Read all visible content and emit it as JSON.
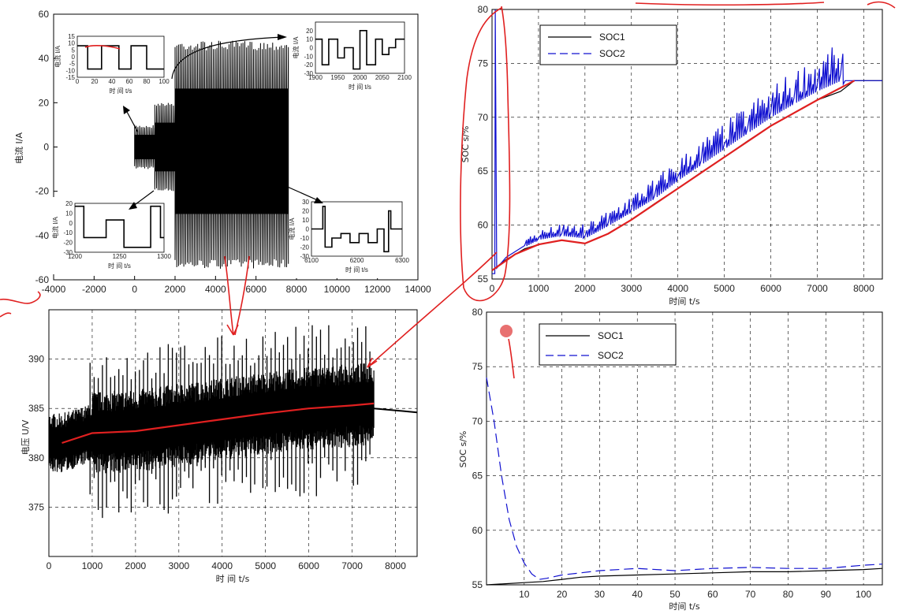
{
  "colors": {
    "background": "#ffffff",
    "soc1": "#000000",
    "soc2": "#1010d0",
    "annotation": "#e02020",
    "grid": "#000000"
  },
  "chart_data": [
    {
      "id": "current",
      "type": "line",
      "xlim": [
        -4000,
        14000
      ],
      "ylim": [
        -60,
        60
      ],
      "xticks": [
        "-4000",
        "-2000",
        "0",
        "2000",
        "4000",
        "6000",
        "8000",
        "10000",
        "12000",
        "14000"
      ],
      "yticks": [
        "60",
        "40",
        "20",
        "0",
        "-20",
        "-40",
        "-60"
      ],
      "ylabel": "电流 I/A",
      "xlabel": "",
      "envelope": [
        {
          "x0": 0,
          "x1": 1000,
          "ymin": -10,
          "ymax": 10
        },
        {
          "x0": 1000,
          "x1": 2000,
          "ymin": -20,
          "ymax": 20
        },
        {
          "x0": 2000,
          "x1": 7600,
          "ymin": -55,
          "ymax": 48
        }
      ],
      "insets": [
        {
          "id": "inset-a",
          "xlim": [
            0,
            100
          ],
          "ylim": [
            -15,
            15
          ],
          "xticks": [
            "0",
            "20",
            "40",
            "60",
            "80",
            "100"
          ],
          "yticks": [
            "15",
            "10",
            "5",
            "0",
            "-5",
            "-10",
            "-15"
          ],
          "xlabel": "时 间 t/s",
          "ylabel": "电流 I/A",
          "steps": [
            [
              0,
              8
            ],
            [
              12,
              8
            ],
            [
              12,
              -9
            ],
            [
              28,
              -9
            ],
            [
              28,
              8
            ],
            [
              48,
              8
            ],
            [
              48,
              -9
            ],
            [
              62,
              -9
            ],
            [
              62,
              8
            ],
            [
              80,
              8
            ],
            [
              80,
              -9
            ],
            [
              100,
              -9
            ]
          ]
        },
        {
          "id": "inset-b",
          "xlim": [
            1900,
            2100
          ],
          "ylim": [
            -30,
            30
          ],
          "xticks": [
            "1900",
            "1950",
            "2000",
            "2050",
            "2100"
          ],
          "yticks": [
            "20",
            "10",
            "0",
            "-10",
            "-20",
            "-30"
          ],
          "xlabel": "时 间 t/s",
          "ylabel": "电流 I/A",
          "steps": [
            [
              1900,
              10
            ],
            [
              1915,
              10
            ],
            [
              1915,
              -20
            ],
            [
              1930,
              -20
            ],
            [
              1930,
              10
            ],
            [
              1950,
              10
            ],
            [
              1950,
              -12
            ],
            [
              1965,
              -12
            ],
            [
              1965,
              0
            ],
            [
              1985,
              0
            ],
            [
              1985,
              -25
            ],
            [
              2000,
              -25
            ],
            [
              2000,
              20
            ],
            [
              2015,
              20
            ],
            [
              2015,
              -20
            ],
            [
              2035,
              -20
            ],
            [
              2035,
              10
            ],
            [
              2050,
              10
            ],
            [
              2050,
              -8
            ],
            [
              2065,
              -8
            ],
            [
              2065,
              0
            ],
            [
              2080,
              0
            ],
            [
              2080,
              10
            ],
            [
              2100,
              10
            ]
          ]
        },
        {
          "id": "inset-c",
          "xlim": [
            1200,
            1300
          ],
          "ylim": [
            -30,
            20
          ],
          "xticks": [
            "1200",
            "1250",
            "1300"
          ],
          "yticks": [
            "20",
            "10",
            "0",
            "-10",
            "-20",
            "-30"
          ],
          "xlabel": "时 间 t/s",
          "ylabel": "电流 I/A",
          "steps": [
            [
              1200,
              17
            ],
            [
              1210,
              17
            ],
            [
              1210,
              -15
            ],
            [
              1235,
              -15
            ],
            [
              1235,
              3
            ],
            [
              1255,
              3
            ],
            [
              1255,
              -25
            ],
            [
              1285,
              -25
            ],
            [
              1285,
              17
            ],
            [
              1296,
              17
            ],
            [
              1296,
              -15
            ],
            [
              1300,
              -15
            ]
          ]
        },
        {
          "id": "inset-d",
          "xlim": [
            6100,
            6300
          ],
          "ylim": [
            -30,
            30
          ],
          "xticks": [
            "6100",
            "6200",
            "6300"
          ],
          "yticks": [
            "30",
            "20",
            "10",
            "0",
            "-10",
            "-20",
            "-30"
          ],
          "xlabel": "时 间 t/s",
          "ylabel": "电流 I/A",
          "steps": [
            [
              6100,
              0
            ],
            [
              6125,
              0
            ],
            [
              6125,
              25
            ],
            [
              6130,
              25
            ],
            [
              6130,
              -20
            ],
            [
              6145,
              -20
            ],
            [
              6145,
              -10
            ],
            [
              6165,
              -10
            ],
            [
              6165,
              -5
            ],
            [
              6185,
              -5
            ],
            [
              6185,
              -15
            ],
            [
              6205,
              -15
            ],
            [
              6205,
              -5
            ],
            [
              6225,
              -5
            ],
            [
              6225,
              -15
            ],
            [
              6245,
              -15
            ],
            [
              6245,
              0
            ],
            [
              6260,
              0
            ],
            [
              6260,
              -25
            ],
            [
              6270,
              -25
            ],
            [
              6270,
              20
            ],
            [
              6275,
              20
            ],
            [
              6275,
              0
            ],
            [
              6300,
              0
            ]
          ]
        }
      ]
    },
    {
      "id": "voltage",
      "type": "line",
      "xlim": [
        0,
        8500
      ],
      "ylim": [
        370,
        395
      ],
      "xticks": [
        "0",
        "1000",
        "2000",
        "3000",
        "4000",
        "5000",
        "6000",
        "7000",
        "8000"
      ],
      "yticks": [
        "390",
        "385",
        "380",
        "375"
      ],
      "ylabel": "电压 U/V",
      "xlabel": "时 间 t/s",
      "grid": true,
      "trend": [
        [
          300,
          381.5
        ],
        [
          1000,
          382.5
        ],
        [
          2000,
          382.7
        ],
        [
          3000,
          383.3
        ],
        [
          4000,
          383.9
        ],
        [
          5000,
          384.5
        ],
        [
          6000,
          385.0
        ],
        [
          7000,
          385.3
        ],
        [
          7500,
          385.5
        ]
      ],
      "tail": [
        [
          7500,
          385
        ],
        [
          8500,
          384.6
        ]
      ]
    },
    {
      "id": "soc-full",
      "type": "line",
      "xlim": [
        0,
        8400
      ],
      "ylim": [
        55,
        80
      ],
      "xticks": [
        "0",
        "1000",
        "2000",
        "3000",
        "4000",
        "5000",
        "6000",
        "7000",
        "8000"
      ],
      "yticks": [
        "80",
        "75",
        "70",
        "65",
        "60",
        "55"
      ],
      "xlabel": "时间 t/s",
      "ylabel": "SOC s/%",
      "grid": true,
      "legend": "top-left",
      "series": [
        {
          "name": "SOC1",
          "style": "solid",
          "x": [
            0,
            300,
            700,
            1000,
            1500,
            2000,
            2500,
            3000,
            3500,
            4000,
            4500,
            5000,
            5500,
            6000,
            6500,
            7000,
            7500,
            7800,
            8400
          ],
          "y": [
            55.8,
            56.8,
            57.8,
            58.2,
            58.6,
            58.3,
            59.2,
            60.5,
            62.0,
            63.4,
            64.9,
            66.3,
            67.8,
            69.2,
            70.4,
            71.6,
            72.4,
            73.4,
            73.4
          ]
        },
        {
          "name": "SOC2",
          "style": "dashed",
          "x": [
            0,
            60,
            70,
            100,
            300,
            700,
            1000,
            1500,
            2000,
            2500,
            3000,
            3500,
            4000,
            4500,
            5000,
            5500,
            6000,
            6500,
            7000,
            7500,
            7600,
            8400
          ],
          "y": [
            55.5,
            55.5,
            80,
            56.0,
            57.0,
            58.1,
            58.8,
            59.2,
            59.0,
            60.2,
            61.5,
            62.8,
            64.5,
            66.0,
            67.5,
            69.0,
            70.5,
            71.8,
            73.0,
            74.0,
            73.4,
            73.4
          ]
        }
      ]
    },
    {
      "id": "soc-zoom",
      "type": "line",
      "xlim": [
        0,
        105
      ],
      "ylim": [
        55,
        80
      ],
      "xticks": [
        "10",
        "20",
        "30",
        "40",
        "50",
        "60",
        "70",
        "80",
        "90",
        "100"
      ],
      "yticks": [
        "80",
        "75",
        "70",
        "65",
        "60",
        "55"
      ],
      "xlabel": "时间 t/s",
      "ylabel": "SOC s/%",
      "grid": true,
      "legend": "top-left",
      "series": [
        {
          "name": "SOC1",
          "style": "solid",
          "x": [
            0,
            5,
            10,
            15,
            20,
            25,
            30,
            40,
            50,
            60,
            70,
            80,
            90,
            100,
            105
          ],
          "y": [
            55.0,
            55.1,
            55.2,
            55.3,
            55.5,
            55.7,
            55.8,
            55.9,
            56.0,
            56.1,
            56.2,
            56.2,
            56.3,
            56.4,
            56.5
          ]
        },
        {
          "name": "SOC2",
          "style": "dashed",
          "x": [
            0,
            2,
            4,
            6,
            8,
            10,
            12,
            14,
            16,
            20,
            25,
            30,
            40,
            50,
            60,
            70,
            80,
            90,
            100,
            105
          ],
          "y": [
            74.0,
            70.0,
            65.0,
            61.0,
            58.5,
            57.0,
            56.0,
            55.5,
            55.6,
            55.9,
            56.1,
            56.3,
            56.5,
            56.3,
            56.5,
            56.6,
            56.5,
            56.5,
            56.8,
            56.9
          ]
        }
      ]
    }
  ]
}
